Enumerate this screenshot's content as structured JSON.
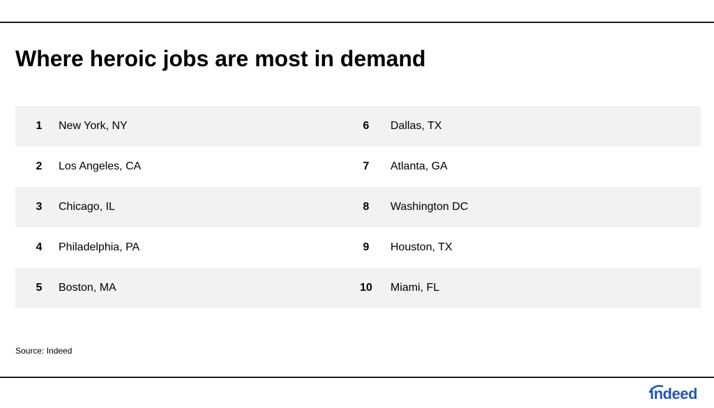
{
  "title": "Where heroic jobs are most in demand",
  "rankings": [
    {
      "left_rank": "1",
      "left_city": "New York, NY",
      "right_rank": "6",
      "right_city": "Dallas, TX"
    },
    {
      "left_rank": "2",
      "left_city": "Los Angeles, CA",
      "right_rank": "7",
      "right_city": "Atlanta, GA"
    },
    {
      "left_rank": "3",
      "left_city": "Chicago, IL",
      "right_rank": "8",
      "right_city": "Washington DC"
    },
    {
      "left_rank": "4",
      "left_city": "Philadelphia, PA",
      "right_rank": "9",
      "right_city": "Houston, TX"
    },
    {
      "left_rank": "5",
      "left_city": "Boston, MA",
      "right_rank": "10",
      "right_city": "Miami, FL"
    }
  ],
  "source": "Source: Indeed",
  "logo": {
    "text": "indeed",
    "color": "#2557a7"
  },
  "colors": {
    "row_shade": "#f2f2f2",
    "rule": "#1a1a1a"
  }
}
